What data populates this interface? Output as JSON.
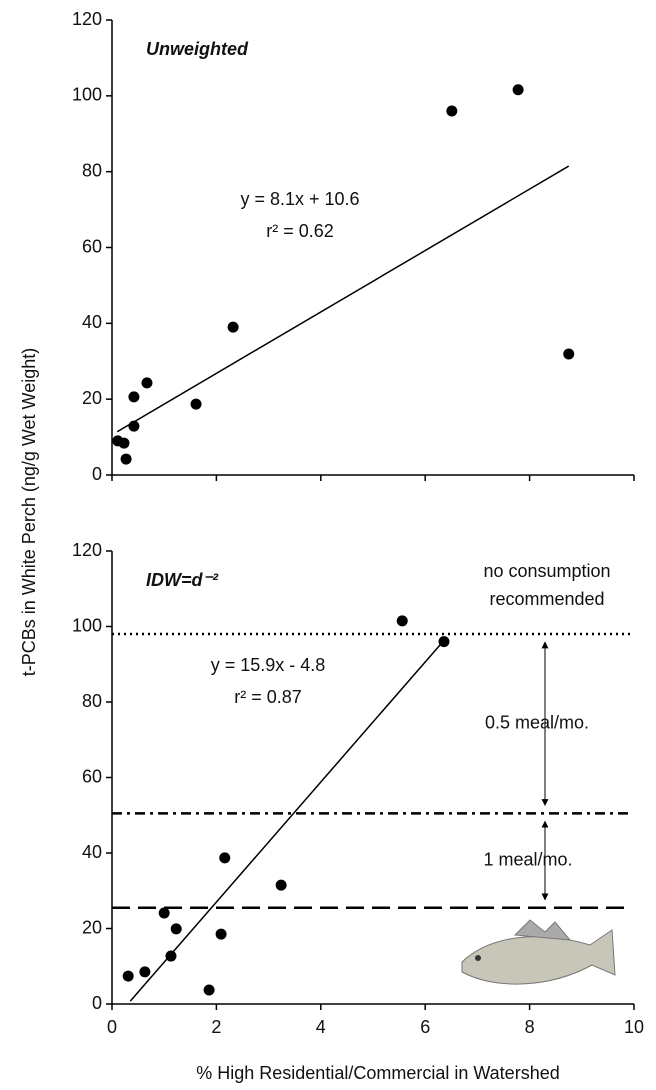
{
  "chart_data": [
    {
      "type": "scatter",
      "panel_label": "Unweighted",
      "x": [
        0.11,
        0.23,
        0.27,
        0.42,
        0.42,
        0.67,
        1.61,
        2.32,
        6.51,
        7.78,
        8.75
      ],
      "values": [
        9.0,
        8.4,
        4.2,
        12.9,
        20.6,
        24.3,
        18.7,
        39,
        96,
        101.6,
        31.9
      ],
      "color": "#000000",
      "xlim": [
        0,
        10
      ],
      "xticks": [
        0,
        2,
        4,
        6,
        8,
        10
      ],
      "ylim": [
        0,
        120
      ],
      "yticks": [
        0,
        20,
        40,
        60,
        80,
        100,
        120
      ],
      "ylabel": "t-PCBs in White Perch (ng/g Wet Weight)",
      "fit": {
        "slope": 8.1,
        "intercept": 10.6,
        "x_range": [
          0.1,
          8.75
        ],
        "equation": "y = 8.1x + 10.6",
        "r2": "r² = 0.62"
      }
    },
    {
      "type": "scatter",
      "panel_label": "IDW=d⁻²",
      "x": [
        0.31,
        0.63,
        1.86,
        1.13,
        1.23,
        1.0,
        2.09,
        2.16,
        3.24,
        5.56,
        6.36
      ],
      "values": [
        7.4,
        8.5,
        3.7,
        12.7,
        19.9,
        24.1,
        18.5,
        38.7,
        31.5,
        101.5,
        96
      ],
      "color": "#000000",
      "xlim": [
        0,
        10
      ],
      "xticks": [
        0,
        2,
        4,
        6,
        8,
        10
      ],
      "ylim": [
        0,
        120
      ],
      "yticks": [
        0,
        20,
        40,
        60,
        80,
        100,
        120
      ],
      "xlabel": "% High Residential/Commercial in Watershed",
      "fit": {
        "slope": 15.9,
        "intercept": -4.8,
        "x_range": [
          0.35,
          6.35
        ],
        "equation": "y = 15.9x - 4.8",
        "r2": "r² = 0.87"
      },
      "hlines": [
        {
          "y": 98,
          "style": "dotted"
        },
        {
          "y": 50.5,
          "style": "dashdot"
        },
        {
          "y": 25.5,
          "style": "dashed"
        }
      ],
      "annotations": [
        "no consumption",
        "recommended",
        "0.5 meal/mo.",
        "1 meal/mo."
      ]
    }
  ]
}
